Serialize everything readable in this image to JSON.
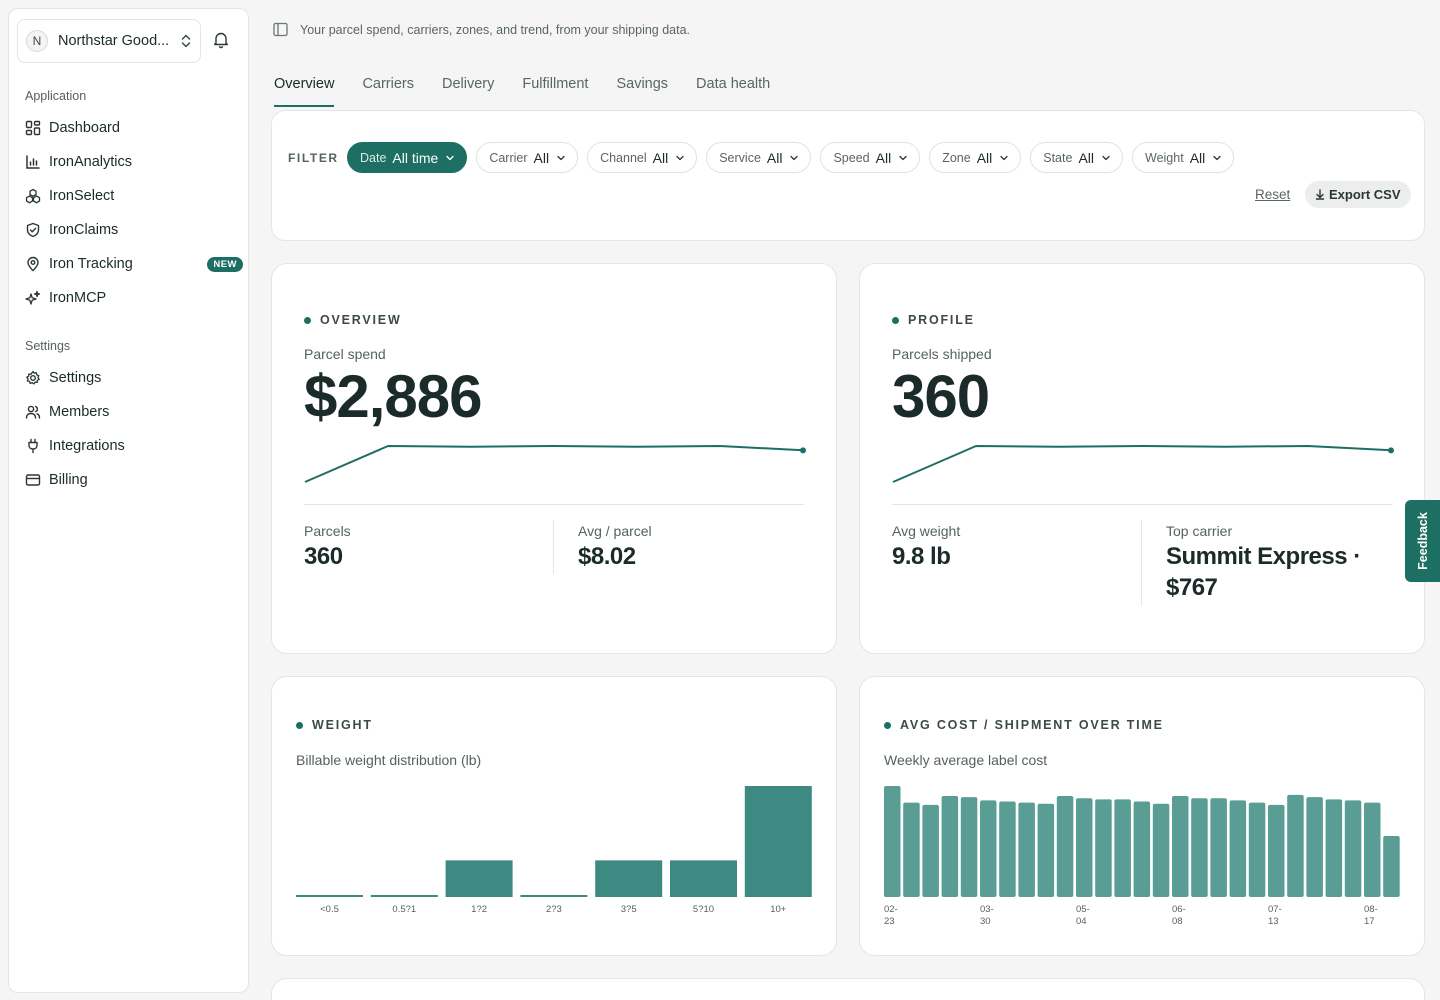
{
  "sidebar": {
    "org": {
      "initial": "N",
      "name": "Northstar Good..."
    },
    "application_label": "Application",
    "settings_label": "Settings",
    "app_items": [
      {
        "label": "Dashboard",
        "icon": "dashboard-icon"
      },
      {
        "label": "IronAnalytics",
        "icon": "bar-chart-icon"
      },
      {
        "label": "IronSelect",
        "icon": "cubes-icon"
      },
      {
        "label": "IronClaims",
        "icon": "shield-check-icon"
      },
      {
        "label": "Iron Tracking",
        "icon": "map-pin-icon",
        "badge": "NEW"
      },
      {
        "label": "IronMCP",
        "icon": "sparkles-icon"
      }
    ],
    "settings_items": [
      {
        "label": "Settings",
        "icon": "gear-icon"
      },
      {
        "label": "Members",
        "icon": "users-icon"
      },
      {
        "label": "Integrations",
        "icon": "plug-icon"
      },
      {
        "label": "Billing",
        "icon": "credit-card-icon"
      }
    ]
  },
  "header": {
    "subtitle": "Your parcel spend, carriers, zones, and trend, from your shipping data.",
    "tabs": [
      "Overview",
      "Carriers",
      "Delivery",
      "Fulfillment",
      "Savings",
      "Data health"
    ],
    "active_tab": "Overview"
  },
  "filters": {
    "label": "FILTER",
    "chips": [
      {
        "name": "Date",
        "value": "All time"
      },
      {
        "name": "Carrier",
        "value": "All"
      },
      {
        "name": "Channel",
        "value": "All"
      },
      {
        "name": "Service",
        "value": "All"
      },
      {
        "name": "Speed",
        "value": "All"
      },
      {
        "name": "Zone",
        "value": "All"
      },
      {
        "name": "State",
        "value": "All"
      },
      {
        "name": "Weight",
        "value": "All"
      }
    ],
    "reset": "Reset",
    "export": "Export CSV"
  },
  "overview": {
    "eyebrow": "OVERVIEW",
    "label": "Parcel spend",
    "value": "$2,886",
    "trend": [
      0.0,
      1.0,
      0.98,
      1.0,
      0.98,
      1.0,
      0.88
    ],
    "stats": [
      {
        "label": "Parcels",
        "value": "360"
      },
      {
        "label": "Avg / parcel",
        "value": "$8.02"
      }
    ]
  },
  "profile": {
    "eyebrow": "PROFILE",
    "label": "Parcels shipped",
    "value": "360",
    "trend": [
      0.0,
      1.0,
      0.98,
      1.0,
      0.98,
      1.0,
      0.88
    ],
    "stats": [
      {
        "label": "Avg weight",
        "value": "9.8 lb"
      },
      {
        "label": "Top carrier",
        "value": "Summit Express ·",
        "value2": "$767"
      }
    ]
  },
  "weight_card": {
    "eyebrow": "WEIGHT",
    "subtitle": "Billable weight distribution (lb)"
  },
  "avgcost_card": {
    "eyebrow": "AVG COST / SHIPMENT OVER TIME",
    "subtitle": "Weekly average label cost"
  },
  "feedback": "Feedback",
  "colors": {
    "accent": "#1d6f63",
    "bar": "#3d8a82",
    "bar_light": "#5a9d94"
  },
  "chart_data": [
    {
      "type": "bar",
      "categories": [
        "<0.5",
        "0.5?1",
        "1?2",
        "2?3",
        "3?5",
        "5?10",
        "10+"
      ],
      "values": [
        1,
        1,
        33,
        1,
        33,
        33,
        100
      ]
    },
    {
      "type": "bar",
      "x_tick_labels": [
        [
          "02-",
          "23"
        ],
        [
          "03-",
          "30"
        ],
        [
          "05-",
          "04"
        ],
        [
          "06-",
          "08"
        ],
        [
          "07-",
          "13"
        ],
        [
          "08-",
          "17"
        ]
      ],
      "values": [
        100,
        85,
        83,
        91,
        90,
        87,
        86,
        85,
        84,
        91,
        89,
        88,
        88,
        86,
        84,
        91,
        89,
        89,
        87,
        85,
        83,
        92,
        90,
        88,
        87,
        85,
        55
      ]
    }
  ]
}
